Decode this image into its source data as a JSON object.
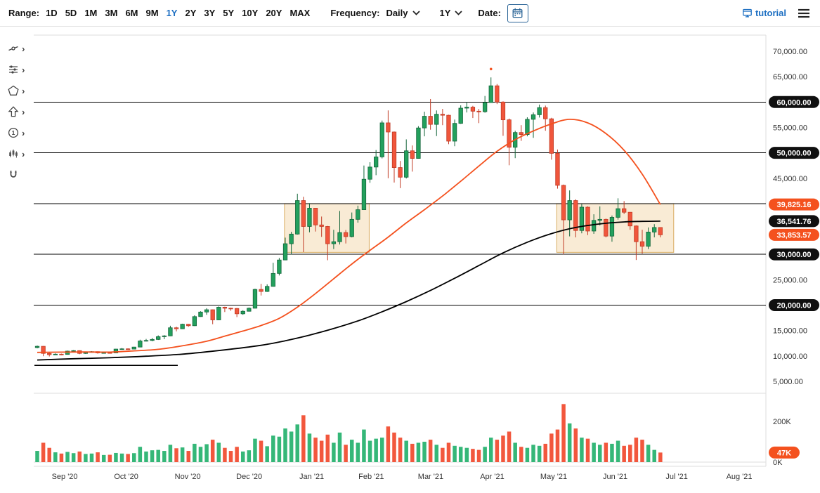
{
  "toolbar": {
    "range_label": "Range:",
    "range_options": [
      "1D",
      "5D",
      "1M",
      "3M",
      "6M",
      "9M",
      "1Y",
      "2Y",
      "3Y",
      "5Y",
      "10Y",
      "20Y",
      "MAX"
    ],
    "active_range": "1Y",
    "frequency_label": "Frequency:",
    "frequency_value": "Daily",
    "range_dropdown_value": "1Y",
    "date_label": "Date:",
    "tutorial_label": "tutorial"
  },
  "sidebar": {
    "tools": [
      "measure-tool",
      "indicators-tool",
      "shapes-tool",
      "arrow-tool",
      "numbered-marker-tool",
      "mini-chart-tool",
      "magnet-tool"
    ]
  },
  "colors": {
    "accent_blue": "#1d6fc2",
    "axis_text": "#333333",
    "candle_up": "#23a05d",
    "candle_up_border": "#13663a",
    "candle_down": "#f0563c",
    "candle_down_border": "#c13a24",
    "vol_up": "#35b778",
    "vol_down": "#f2573d",
    "ma_fast": "#f4511e",
    "ma_slow": "#000000",
    "badge_black": "#101010",
    "badge_accent": "#f4511e",
    "box_fill": "#f6debb",
    "box_border": "#d9ad62",
    "annotation_line": "#000000",
    "frame_line": "#dddddd"
  },
  "chart_data": {
    "type": "candlestick",
    "frequency": "daily",
    "ylim": [
      5000,
      70000
    ],
    "volume_ylim_k": [
      0,
      200
    ],
    "candle_step_days": 3,
    "axis_end_day": 365,
    "months": [
      {
        "label": "Sep '20",
        "start_day": 0
      },
      {
        "label": "Oct '20",
        "start_day": 30
      },
      {
        "label": "Nov '20",
        "start_day": 61
      },
      {
        "label": "Dec '20",
        "start_day": 91
      },
      {
        "label": "Jan '21",
        "start_day": 122
      },
      {
        "label": "Feb '21",
        "start_day": 153
      },
      {
        "label": "Mar '21",
        "start_day": 181
      },
      {
        "label": "Apr '21",
        "start_day": 212
      },
      {
        "label": "May '21",
        "start_day": 242
      },
      {
        "label": "Jun '21",
        "start_day": 273
      },
      {
        "label": "Jul '21",
        "start_day": 303
      },
      {
        "label": "Aug '21",
        "start_day": 334
      }
    ],
    "price_axis_ticks": [
      {
        "label": "70,000.00",
        "price": 70000
      },
      {
        "label": "65,000.00",
        "price": 65000
      },
      {
        "label": "55,000.00",
        "price": 55000
      },
      {
        "label": "45,000.00",
        "price": 45000
      },
      {
        "label": "25,000.00",
        "price": 25000
      },
      {
        "label": "15,000.00",
        "price": 15000
      },
      {
        "label": "10,000.00",
        "price": 10000
      },
      {
        "label": "5,000.00",
        "price": 5000
      }
    ],
    "price_badges": [
      {
        "label": "60,000.00",
        "price": 60000,
        "style": "black"
      },
      {
        "label": "50,000.00",
        "price": 50000,
        "style": "black"
      },
      {
        "label": "39,825.16",
        "price": 39825.16,
        "style": "accent"
      },
      {
        "label": "36,541.76",
        "price": 36541.76,
        "style": "black"
      },
      {
        "label": "33,853.57",
        "price": 33853.57,
        "style": "accent"
      },
      {
        "label": "30,000.00",
        "price": 30000,
        "style": "black"
      },
      {
        "label": "20,000.00",
        "price": 20000,
        "style": "black"
      }
    ],
    "hline_prices": [
      60000,
      50000,
      40000,
      30000,
      20000
    ],
    "segment_line": {
      "start_day": 0,
      "end_day": 71,
      "price": 8150
    },
    "highlight_boxes": [
      {
        "start_day": 124,
        "end_day": 166,
        "top": 40000,
        "bottom": 30400
      },
      {
        "start_day": 259,
        "end_day": 317,
        "top": 40000,
        "bottom": 30400
      }
    ],
    "high_marker": {
      "candle_index": 75,
      "price": 66500
    },
    "volume_axis": {
      "ticks": [
        {
          "label": "200K",
          "value": 200
        },
        {
          "label": "0K",
          "value": 0
        }
      ],
      "badge": {
        "label": "47K",
        "value": 47
      }
    },
    "candles": [
      [
        11650,
        12050,
        11500,
        11900,
        55
      ],
      [
        11900,
        11950,
        9950,
        10500,
        95
      ],
      [
        10500,
        10600,
        9900,
        10250,
        70
      ],
      [
        10250,
        10500,
        10200,
        10350,
        48
      ],
      [
        10350,
        10450,
        10150,
        10300,
        42
      ],
      [
        10300,
        11050,
        10250,
        10950,
        50
      ],
      [
        10950,
        11150,
        10850,
        11050,
        44
      ],
      [
        11050,
        11100,
        10350,
        10500,
        52
      ],
      [
        10500,
        10800,
        10400,
        10700,
        40
      ],
      [
        10700,
        10950,
        10650,
        10850,
        42
      ],
      [
        10850,
        10900,
        10450,
        10600,
        48
      ],
      [
        10600,
        10700,
        10500,
        10650,
        35
      ],
      [
        10650,
        10700,
        10550,
        10600,
        36
      ],
      [
        10600,
        11400,
        10550,
        11350,
        45
      ],
      [
        11350,
        11550,
        11250,
        11400,
        42
      ],
      [
        11400,
        11500,
        11200,
        11350,
        40
      ],
      [
        11350,
        11800,
        11300,
        11750,
        44
      ],
      [
        11750,
        13200,
        11700,
        12950,
        75
      ],
      [
        12950,
        13350,
        12850,
        13050,
        52
      ],
      [
        13050,
        13550,
        12900,
        13250,
        58
      ],
      [
        13250,
        14050,
        13150,
        13800,
        60
      ],
      [
        13800,
        14100,
        13300,
        13950,
        55
      ],
      [
        13950,
        15950,
        13900,
        15550,
        85
      ],
      [
        15550,
        15750,
        14850,
        15350,
        68
      ],
      [
        15350,
        16350,
        15300,
        16250,
        72
      ],
      [
        16250,
        16300,
        15750,
        15950,
        55
      ],
      [
        15950,
        18000,
        15900,
        17750,
        90
      ],
      [
        17750,
        18800,
        17700,
        18650,
        75
      ],
      [
        18650,
        19400,
        18100,
        19100,
        88
      ],
      [
        19100,
        19150,
        16250,
        17100,
        110
      ],
      [
        17100,
        19750,
        17050,
        19600,
        95
      ],
      [
        19600,
        19700,
        18650,
        19400,
        70
      ],
      [
        19400,
        19500,
        18900,
        19350,
        55
      ],
      [
        19350,
        19450,
        17650,
        18300,
        75
      ],
      [
        18300,
        19000,
        18100,
        18800,
        52
      ],
      [
        18800,
        19550,
        18750,
        19400,
        58
      ],
      [
        19400,
        23250,
        19350,
        23100,
        115
      ],
      [
        23100,
        24200,
        21900,
        22700,
        105
      ],
      [
        22700,
        24100,
        22600,
        23700,
        78
      ],
      [
        23700,
        28350,
        23650,
        26250,
        130
      ],
      [
        26250,
        29300,
        25850,
        28900,
        125
      ],
      [
        28900,
        33300,
        28850,
        32100,
        165
      ],
      [
        32100,
        34450,
        29950,
        34000,
        150
      ],
      [
        34000,
        41950,
        33900,
        40600,
        185
      ],
      [
        40600,
        41350,
        30450,
        35500,
        230
      ],
      [
        35500,
        40100,
        34350,
        39100,
        140
      ],
      [
        39100,
        39150,
        34500,
        35800,
        120
      ],
      [
        35800,
        37450,
        33450,
        35500,
        105
      ],
      [
        35500,
        35600,
        28850,
        32100,
        135
      ],
      [
        32100,
        34850,
        31050,
        32500,
        95
      ],
      [
        32500,
        38550,
        31950,
        34300,
        145
      ],
      [
        34300,
        34800,
        32150,
        33500,
        85
      ],
      [
        33500,
        38250,
        33350,
        36900,
        110
      ],
      [
        36900,
        39600,
        36250,
        38800,
        95
      ],
      [
        38800,
        47500,
        38750,
        44800,
        160
      ],
      [
        44800,
        48150,
        44100,
        47200,
        105
      ],
      [
        47200,
        50550,
        45600,
        49200,
        115
      ],
      [
        49200,
        56350,
        48900,
        55900,
        120
      ],
      [
        55900,
        58350,
        45000,
        54100,
        175
      ],
      [
        54100,
        54200,
        44150,
        47100,
        145
      ],
      [
        47100,
        48400,
        43050,
        45200,
        120
      ],
      [
        45200,
        52650,
        44950,
        50400,
        105
      ],
      [
        50400,
        51450,
        46300,
        48900,
        90
      ],
      [
        48900,
        55250,
        48850,
        54900,
        95
      ],
      [
        54900,
        58100,
        53250,
        57200,
        100
      ],
      [
        57200,
        60600,
        54550,
        55600,
        110
      ],
      [
        55600,
        58350,
        53300,
        57600,
        85
      ],
      [
        57600,
        58650,
        55450,
        57400,
        70
      ],
      [
        57400,
        57500,
        51700,
        52300,
        95
      ],
      [
        52300,
        56550,
        51300,
        55800,
        80
      ],
      [
        55800,
        59350,
        55700,
        58800,
        75
      ],
      [
        58800,
        60000,
        57950,
        59000,
        70
      ],
      [
        59000,
        59250,
        56850,
        58200,
        65
      ],
      [
        58200,
        58650,
        55850,
        58100,
        60
      ],
      [
        58100,
        61200,
        57900,
        59900,
        75
      ],
      [
        59900,
        64850,
        59850,
        63200,
        120
      ],
      [
        63200,
        63550,
        59600,
        60000,
        110
      ],
      [
        60000,
        60150,
        53350,
        56500,
        130
      ],
      [
        56500,
        56750,
        47550,
        51100,
        150
      ],
      [
        51100,
        54350,
        48950,
        54000,
        95
      ],
      [
        54000,
        55450,
        52350,
        53600,
        75
      ],
      [
        53600,
        57000,
        53250,
        56600,
        70
      ],
      [
        56600,
        57950,
        52950,
        57500,
        85
      ],
      [
        57500,
        59500,
        56950,
        58900,
        80
      ],
      [
        58900,
        59300,
        54350,
        56700,
        90
      ],
      [
        56700,
        56900,
        48650,
        49900,
        140
      ],
      [
        49900,
        50650,
        42950,
        43600,
        160
      ],
      [
        43600,
        43750,
        30000,
        36800,
        285
      ],
      [
        36800,
        42600,
        33550,
        40600,
        190
      ],
      [
        40600,
        40850,
        33350,
        34700,
        165
      ],
      [
        34700,
        39900,
        34150,
        39300,
        120
      ],
      [
        39300,
        39450,
        33800,
        34600,
        115
      ],
      [
        34600,
        37900,
        34050,
        36700,
        95
      ],
      [
        36700,
        39450,
        35700,
        36900,
        85
      ],
      [
        36900,
        37050,
        33350,
        33600,
        95
      ],
      [
        33600,
        37650,
        32500,
        37300,
        90
      ],
      [
        37300,
        41050,
        36850,
        39000,
        105
      ],
      [
        39000,
        40500,
        37950,
        38300,
        80
      ],
      [
        38300,
        38350,
        34850,
        35600,
        85
      ],
      [
        35600,
        35700,
        28900,
        32500,
        120
      ],
      [
        32500,
        34850,
        30150,
        31600,
        110
      ],
      [
        31600,
        35300,
        31050,
        34400,
        85
      ],
      [
        34400,
        35950,
        33350,
        35300,
        60
      ],
      [
        35300,
        35350,
        33350,
        33853.57,
        47
      ]
    ],
    "ma_fast": {
      "name": "fast moving average (red)",
      "last_value": 39825.16,
      "points": [
        [
          0,
          10700
        ],
        [
          4,
          10750
        ],
        [
          8,
          10780
        ],
        [
          12,
          10760
        ],
        [
          16,
          11000
        ],
        [
          20,
          11300
        ],
        [
          24,
          12000
        ],
        [
          28,
          12900
        ],
        [
          31,
          13900
        ],
        [
          34,
          14900
        ],
        [
          37,
          16000
        ],
        [
          40,
          17400
        ],
        [
          43,
          19600
        ],
        [
          46,
          22300
        ],
        [
          49,
          25200
        ],
        [
          52,
          28100
        ],
        [
          55,
          30800
        ],
        [
          58,
          33400
        ],
        [
          61,
          36200
        ],
        [
          64,
          38800
        ],
        [
          67,
          41500
        ],
        [
          70,
          44400
        ],
        [
          73,
          47400
        ],
        [
          76,
          50300
        ],
        [
          79,
          52600
        ],
        [
          82,
          54300
        ],
        [
          85,
          55700
        ],
        [
          88,
          56600
        ],
        [
          91,
          55900
        ],
        [
          94,
          53800
        ],
        [
          97,
          50500
        ],
        [
          100,
          45800
        ],
        [
          103,
          39825.16
        ]
      ]
    },
    "ma_slow": {
      "name": "slow moving average (black)",
      "last_value": 36541.76,
      "points": [
        [
          0,
          9200
        ],
        [
          6,
          9450
        ],
        [
          12,
          9650
        ],
        [
          18,
          9950
        ],
        [
          24,
          10350
        ],
        [
          31,
          11200
        ],
        [
          37,
          12100
        ],
        [
          41,
          13000
        ],
        [
          45,
          14100
        ],
        [
          49,
          15400
        ],
        [
          53,
          16900
        ],
        [
          57,
          18700
        ],
        [
          61,
          20700
        ],
        [
          65,
          22900
        ],
        [
          69,
          25300
        ],
        [
          73,
          27800
        ],
        [
          77,
          30300
        ],
        [
          81,
          32400
        ],
        [
          85,
          34100
        ],
        [
          89,
          35300
        ],
        [
          93,
          36000
        ],
        [
          97,
          36400
        ],
        [
          100,
          36500
        ],
        [
          103,
          36541.76
        ]
      ]
    }
  }
}
